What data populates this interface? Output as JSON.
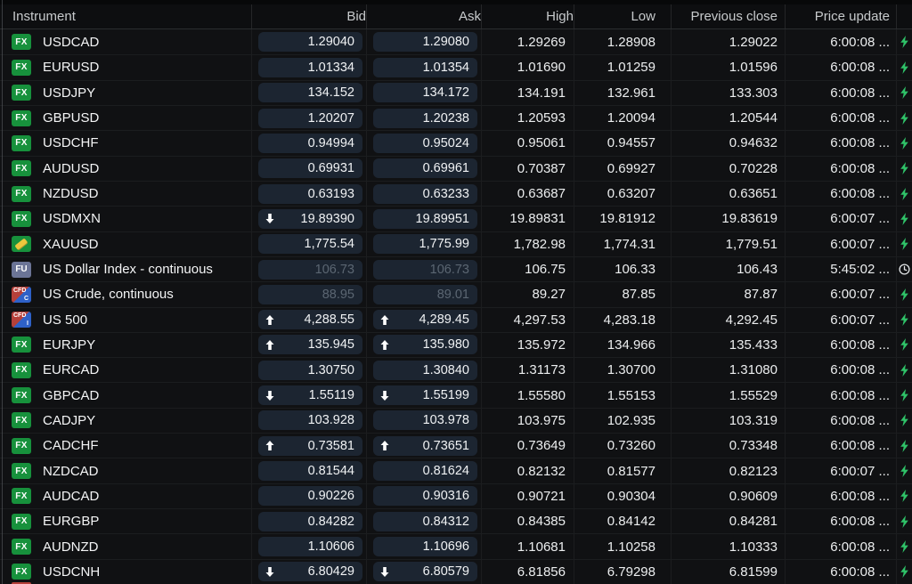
{
  "table": {
    "columns": [
      "Instrument",
      "Bid",
      "Ask",
      "High",
      "Low",
      "Previous close",
      "Price update"
    ],
    "badge_labels": {
      "fx": "FX",
      "fu": "FU",
      "cfd": "CFD",
      "cfd_c": "C",
      "cfd_i": "I"
    },
    "colors": {
      "fx_badge_green": "#17913c",
      "gold_bar": "#ecc73d",
      "futures_badge_slate": "#6b7496",
      "cfd_red": "#b5403a",
      "cfd_blue": "#2e61c8",
      "flash_green": "#2fc268",
      "pill_background": "#1c2531",
      "muted_price_text": "#5b6672",
      "row_background": "#101113"
    },
    "rows": [
      {
        "badge": "fx",
        "name": "USDCAD",
        "bid_arrow": "",
        "bid": "1.29040",
        "ask_arrow": "",
        "ask": "1.29080",
        "high": "1.29269",
        "low": "1.28908",
        "prev_close": "1.29022",
        "time": "6:00:08 ...",
        "status": "bolt",
        "muted": false
      },
      {
        "badge": "fx",
        "name": "EURUSD",
        "bid_arrow": "",
        "bid": "1.01334",
        "ask_arrow": "",
        "ask": "1.01354",
        "high": "1.01690",
        "low": "1.01259",
        "prev_close": "1.01596",
        "time": "6:00:08 ...",
        "status": "bolt",
        "muted": false
      },
      {
        "badge": "fx",
        "name": "USDJPY",
        "bid_arrow": "",
        "bid": "134.152",
        "ask_arrow": "",
        "ask": "134.172",
        "high": "134.191",
        "low": "132.961",
        "prev_close": "133.303",
        "time": "6:00:08 ...",
        "status": "bolt",
        "muted": false
      },
      {
        "badge": "fx",
        "name": "GBPUSD",
        "bid_arrow": "",
        "bid": "1.20207",
        "ask_arrow": "",
        "ask": "1.20238",
        "high": "1.20593",
        "low": "1.20094",
        "prev_close": "1.20544",
        "time": "6:00:08 ...",
        "status": "bolt",
        "muted": false
      },
      {
        "badge": "fx",
        "name": "USDCHF",
        "bid_arrow": "",
        "bid": "0.94994",
        "ask_arrow": "",
        "ask": "0.95024",
        "high": "0.95061",
        "low": "0.94557",
        "prev_close": "0.94632",
        "time": "6:00:08 ...",
        "status": "bolt",
        "muted": false
      },
      {
        "badge": "fx",
        "name": "AUDUSD",
        "bid_arrow": "",
        "bid": "0.69931",
        "ask_arrow": "",
        "ask": "0.69961",
        "high": "0.70387",
        "low": "0.69927",
        "prev_close": "0.70228",
        "time": "6:00:08 ...",
        "status": "bolt",
        "muted": false
      },
      {
        "badge": "fx",
        "name": "NZDUSD",
        "bid_arrow": "",
        "bid": "0.63193",
        "ask_arrow": "",
        "ask": "0.63233",
        "high": "0.63687",
        "low": "0.63207",
        "prev_close": "0.63651",
        "time": "6:00:08 ...",
        "status": "bolt",
        "muted": false
      },
      {
        "badge": "fx",
        "name": "USDMXN",
        "bid_arrow": "down",
        "bid": "19.89390",
        "ask_arrow": "",
        "ask": "19.89951",
        "high": "19.89831",
        "low": "19.81912",
        "prev_close": "19.83619",
        "time": "6:00:07 ...",
        "status": "bolt",
        "muted": false
      },
      {
        "badge": "gold",
        "name": "XAUUSD",
        "bid_arrow": "",
        "bid": "1,775.54",
        "ask_arrow": "",
        "ask": "1,775.99",
        "high": "1,782.98",
        "low": "1,774.31",
        "prev_close": "1,779.51",
        "time": "6:00:07 ...",
        "status": "bolt",
        "muted": false
      },
      {
        "badge": "fu",
        "name": "US Dollar Index - continuous",
        "bid_arrow": "",
        "bid": "106.73",
        "ask_arrow": "",
        "ask": "106.73",
        "high": "106.75",
        "low": "106.33",
        "prev_close": "106.43",
        "time": "5:45:02 ...",
        "status": "clock",
        "muted": true
      },
      {
        "badge": "cfd-c",
        "name": "US Crude, continuous",
        "bid_arrow": "",
        "bid": "88.95",
        "ask_arrow": "",
        "ask": "89.01",
        "high": "89.27",
        "low": "87.85",
        "prev_close": "87.87",
        "time": "6:00:07 ...",
        "status": "bolt",
        "muted": true
      },
      {
        "badge": "cfd-i",
        "name": "US 500",
        "bid_arrow": "up",
        "bid": "4,288.55",
        "ask_arrow": "up",
        "ask": "4,289.45",
        "high": "4,297.53",
        "low": "4,283.18",
        "prev_close": "4,292.45",
        "time": "6:00:07 ...",
        "status": "bolt",
        "muted": false
      },
      {
        "badge": "fx",
        "name": "EURJPY",
        "bid_arrow": "up",
        "bid": "135.945",
        "ask_arrow": "up",
        "ask": "135.980",
        "high": "135.972",
        "low": "134.966",
        "prev_close": "135.433",
        "time": "6:00:08 ...",
        "status": "bolt",
        "muted": false
      },
      {
        "badge": "fx",
        "name": "EURCAD",
        "bid_arrow": "",
        "bid": "1.30750",
        "ask_arrow": "",
        "ask": "1.30840",
        "high": "1.31173",
        "low": "1.30700",
        "prev_close": "1.31080",
        "time": "6:00:08 ...",
        "status": "bolt",
        "muted": false
      },
      {
        "badge": "fx",
        "name": "GBPCAD",
        "bid_arrow": "down",
        "bid": "1.55119",
        "ask_arrow": "down",
        "ask": "1.55199",
        "high": "1.55580",
        "low": "1.55153",
        "prev_close": "1.55529",
        "time": "6:00:08 ...",
        "status": "bolt",
        "muted": false
      },
      {
        "badge": "fx",
        "name": "CADJPY",
        "bid_arrow": "",
        "bid": "103.928",
        "ask_arrow": "",
        "ask": "103.978",
        "high": "103.975",
        "low": "102.935",
        "prev_close": "103.319",
        "time": "6:00:08 ...",
        "status": "bolt",
        "muted": false
      },
      {
        "badge": "fx",
        "name": "CADCHF",
        "bid_arrow": "up",
        "bid": "0.73581",
        "ask_arrow": "up",
        "ask": "0.73651",
        "high": "0.73649",
        "low": "0.73260",
        "prev_close": "0.73348",
        "time": "6:00:08 ...",
        "status": "bolt",
        "muted": false
      },
      {
        "badge": "fx",
        "name": "NZDCAD",
        "bid_arrow": "",
        "bid": "0.81544",
        "ask_arrow": "",
        "ask": "0.81624",
        "high": "0.82132",
        "low": "0.81577",
        "prev_close": "0.82123",
        "time": "6:00:07 ...",
        "status": "bolt",
        "muted": false
      },
      {
        "badge": "fx",
        "name": "AUDCAD",
        "bid_arrow": "",
        "bid": "0.90226",
        "ask_arrow": "",
        "ask": "0.90316",
        "high": "0.90721",
        "low": "0.90304",
        "prev_close": "0.90609",
        "time": "6:00:08 ...",
        "status": "bolt",
        "muted": false
      },
      {
        "badge": "fx",
        "name": "EURGBP",
        "bid_arrow": "",
        "bid": "0.84282",
        "ask_arrow": "",
        "ask": "0.84312",
        "high": "0.84385",
        "low": "0.84142",
        "prev_close": "0.84281",
        "time": "6:00:08 ...",
        "status": "bolt",
        "muted": false
      },
      {
        "badge": "fx",
        "name": "AUDNZD",
        "bid_arrow": "",
        "bid": "1.10606",
        "ask_arrow": "",
        "ask": "1.10696",
        "high": "1.10681",
        "low": "1.10258",
        "prev_close": "1.10333",
        "time": "6:00:08 ...",
        "status": "bolt",
        "muted": false
      },
      {
        "badge": "fx",
        "name": "USDCNH",
        "bid_arrow": "down",
        "bid": "6.80429",
        "ask_arrow": "down",
        "ask": "6.80579",
        "high": "6.81856",
        "low": "6.79298",
        "prev_close": "6.81599",
        "time": "6:00:08 ...",
        "status": "bolt",
        "muted": false
      }
    ]
  }
}
